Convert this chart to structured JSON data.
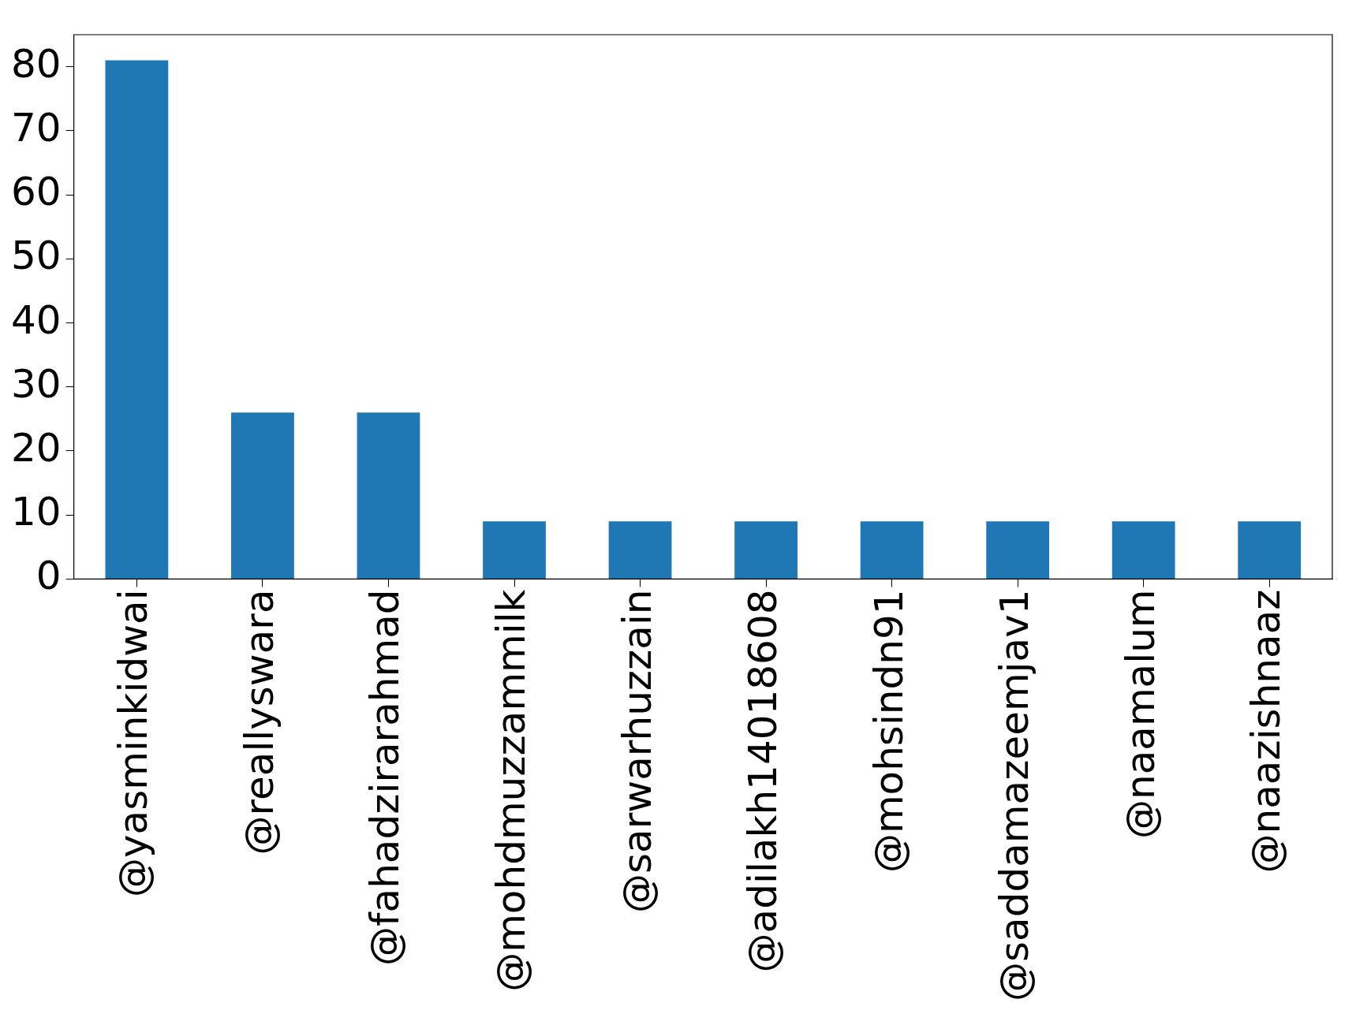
{
  "chart_data": {
    "type": "bar",
    "categories": [
      "@yasminkidwai",
      "@reallyswara",
      "@fahadzirarahmad",
      "@mohdmuzzammilk",
      "@sarwarhuzzain",
      "@adilakh14018608",
      "@mohsindn91",
      "@saddamazeemjav1",
      "@naamalum",
      "@naazishnaaz"
    ],
    "values": [
      81,
      26,
      26,
      9,
      9,
      9,
      9,
      9,
      9,
      9
    ],
    "color": "#1f77b4",
    "ylim": [
      0,
      85
    ],
    "yticks": [
      0,
      10,
      20,
      30,
      40,
      50,
      60,
      70,
      80
    ],
    "grid": false,
    "legend": false
  }
}
